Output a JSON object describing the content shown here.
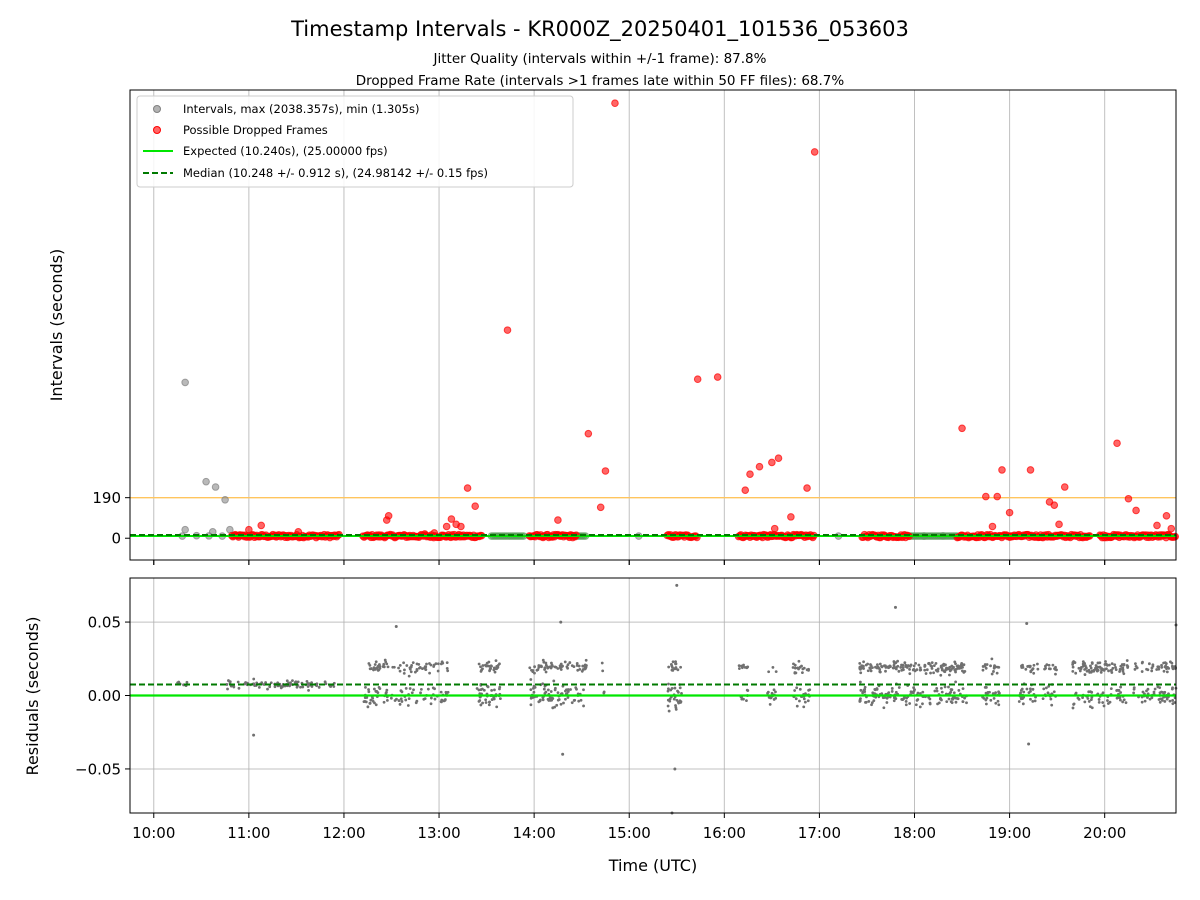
{
  "chart_data": [
    {
      "type": "scatter",
      "title": "Timestamp Intervals - KR000Z_20250401_101536_053603",
      "subtitle_lines": [
        "Jitter Quality (intervals within +/-1 frame): 87.8%",
        "Dropped Frame Rate (intervals >1 frames late within 50 FF files): 68.7%"
      ],
      "xlabel": "",
      "ylabel": "Intervals (seconds)",
      "x_unit": "hours UTC",
      "xlim": [
        9.75,
        20.75
      ],
      "ylim": [
        -102,
        2100
      ],
      "x_tick_values": [
        10,
        11,
        12,
        13,
        14,
        15,
        16,
        17,
        18,
        19,
        20
      ],
      "x_tick_labels": [
        "10:00",
        "11:00",
        "12:00",
        "13:00",
        "14:00",
        "15:00",
        "16:00",
        "17:00",
        "18:00",
        "19:00",
        "20:00"
      ],
      "y_tick_values": [
        0,
        190
      ],
      "y_tick_labels": [
        "0",
        "190"
      ],
      "grid": "vertical",
      "threshold_line": {
        "value": 190,
        "color": "#ffc55e"
      },
      "expected_value": 10.24,
      "median_value": 10.248,
      "legend": {
        "placement": "top-left",
        "entries": [
          {
            "label": "Intervals, max (2038.357s), min (1.305s)",
            "kind": "marker",
            "color": "#808080"
          },
          {
            "label": "Possible Dropped Frames",
            "kind": "marker",
            "color": "#ff0000"
          },
          {
            "label": "Expected (10.240s), (25.00000 fps)",
            "kind": "line",
            "color": "#00e600"
          },
          {
            "label": "Median (10.248 +/- 0.912 s), (24.98142 +/- 0.15 fps)",
            "kind": "dashed",
            "color": "#007a00"
          }
        ]
      },
      "series": [
        {
          "name": "Intervals",
          "color": "#808080",
          "points": [
            {
              "x": 10.33,
              "y": 730
            },
            {
              "x": 10.55,
              "y": 265
            },
            {
              "x": 10.65,
              "y": 240
            },
            {
              "x": 10.75,
              "y": 180
            },
            {
              "x": 10.33,
              "y": 40
            },
            {
              "x": 10.62,
              "y": 30
            },
            {
              "x": 10.8,
              "y": 40
            },
            {
              "x": 10.3,
              "y": 10
            },
            {
              "x": 10.45,
              "y": 12
            },
            {
              "x": 10.58,
              "y": 11
            },
            {
              "x": 10.72,
              "y": 10
            },
            {
              "x": 10.9,
              "y": 11
            },
            {
              "x": 14.1,
              "y": 11
            },
            {
              "x": 14.4,
              "y": 12
            },
            {
              "x": 15.1,
              "y": 10
            },
            {
              "x": 16.5,
              "y": 11
            },
            {
              "x": 17.2,
              "y": 10
            },
            {
              "x": 17.9,
              "y": 12
            },
            {
              "x": 18.1,
              "y": 10
            },
            {
              "x": 18.3,
              "y": 11
            },
            {
              "x": 19.5,
              "y": 10
            },
            {
              "x": 20.4,
              "y": 11
            }
          ]
        },
        {
          "name": "Possible Dropped Frames",
          "color": "#ff0000",
          "outliers": [
            {
              "x": 14.85,
              "y": 2038
            },
            {
              "x": 16.95,
              "y": 1810
            },
            {
              "x": 13.72,
              "y": 975
            },
            {
              "x": 15.72,
              "y": 745
            },
            {
              "x": 15.93,
              "y": 755
            },
            {
              "x": 14.57,
              "y": 490
            },
            {
              "x": 18.5,
              "y": 515
            },
            {
              "x": 20.13,
              "y": 445
            },
            {
              "x": 14.75,
              "y": 315
            },
            {
              "x": 16.5,
              "y": 355
            },
            {
              "x": 16.37,
              "y": 335
            },
            {
              "x": 16.57,
              "y": 375
            },
            {
              "x": 16.27,
              "y": 300
            },
            {
              "x": 16.22,
              "y": 225
            },
            {
              "x": 16.87,
              "y": 235
            },
            {
              "x": 18.92,
              "y": 320
            },
            {
              "x": 19.22,
              "y": 320
            },
            {
              "x": 13.3,
              "y": 235
            },
            {
              "x": 13.38,
              "y": 150
            },
            {
              "x": 14.7,
              "y": 145
            },
            {
              "x": 12.47,
              "y": 105
            },
            {
              "x": 12.45,
              "y": 85
            },
            {
              "x": 12.85,
              "y": 20
            },
            {
              "x": 18.75,
              "y": 195
            },
            {
              "x": 18.87,
              "y": 195
            },
            {
              "x": 19.42,
              "y": 170
            },
            {
              "x": 19.47,
              "y": 155
            },
            {
              "x": 19.58,
              "y": 240
            },
            {
              "x": 19.0,
              "y": 120
            },
            {
              "x": 20.25,
              "y": 185
            },
            {
              "x": 20.33,
              "y": 130
            },
            {
              "x": 20.65,
              "y": 105
            },
            {
              "x": 20.55,
              "y": 60
            },
            {
              "x": 20.7,
              "y": 45
            },
            {
              "x": 16.7,
              "y": 100
            },
            {
              "x": 14.25,
              "y": 85
            },
            {
              "x": 11.13,
              "y": 60
            },
            {
              "x": 13.13,
              "y": 90
            },
            {
              "x": 13.18,
              "y": 65
            },
            {
              "x": 13.08,
              "y": 55
            },
            {
              "x": 18.82,
              "y": 55
            },
            {
              "x": 19.52,
              "y": 65
            },
            {
              "x": 16.53,
              "y": 45
            },
            {
              "x": 13.23,
              "y": 55
            },
            {
              "x": 11.0,
              "y": 40
            },
            {
              "x": 11.52,
              "y": 30
            },
            {
              "x": 12.95,
              "y": 25
            }
          ],
          "baseline_clusters": [
            {
              "start": 10.82,
              "end": 11.95,
              "y": 10
            },
            {
              "start": 12.2,
              "end": 13.45,
              "y": 10
            },
            {
              "start": 13.95,
              "end": 14.45,
              "y": 10
            },
            {
              "start": 15.4,
              "end": 15.72,
              "y": 10
            },
            {
              "start": 16.15,
              "end": 16.95,
              "y": 10
            },
            {
              "start": 17.45,
              "end": 17.95,
              "y": 10
            },
            {
              "start": 18.45,
              "end": 19.35,
              "y": 10
            },
            {
              "start": 19.35,
              "end": 19.85,
              "y": 10
            },
            {
              "start": 19.95,
              "end": 20.75,
              "y": 10
            }
          ]
        }
      ]
    },
    {
      "type": "scatter",
      "title": "",
      "xlabel": "Time (UTC)",
      "ylabel": "Residuals (seconds)",
      "xlim": [
        9.75,
        20.75
      ],
      "ylim": [
        -0.08,
        0.08
      ],
      "x_tick_values": [
        10,
        11,
        12,
        13,
        14,
        15,
        16,
        17,
        18,
        19,
        20
      ],
      "x_tick_labels": [
        "10:00",
        "11:00",
        "12:00",
        "13:00",
        "14:00",
        "15:00",
        "16:00",
        "17:00",
        "18:00",
        "19:00",
        "20:00"
      ],
      "y_tick_values": [
        0.05,
        0.0,
        -0.05
      ],
      "y_tick_labels": [
        "0.05",
        "0.00",
        "−0.05"
      ],
      "grid": "both",
      "expected_value": 0.0,
      "median_value": 0.0075,
      "clusters": [
        {
          "start": 10.25,
          "end": 10.35,
          "spread": 0.004,
          "n": 8
        },
        {
          "start": 10.75,
          "end": 11.95,
          "spread": 0.005,
          "n": 90
        },
        {
          "start": 12.2,
          "end": 13.1,
          "spread": 0.014,
          "n": 150
        },
        {
          "start": 13.4,
          "end": 13.65,
          "spread": 0.014,
          "n": 70
        },
        {
          "start": 13.95,
          "end": 14.55,
          "spread": 0.016,
          "n": 140
        },
        {
          "start": 14.7,
          "end": 14.75,
          "spread": 0.01,
          "n": 4
        },
        {
          "start": 15.4,
          "end": 15.55,
          "spread": 0.018,
          "n": 45
        },
        {
          "start": 16.15,
          "end": 16.25,
          "spread": 0.012,
          "n": 18
        },
        {
          "start": 16.45,
          "end": 16.55,
          "spread": 0.012,
          "n": 18
        },
        {
          "start": 16.72,
          "end": 16.9,
          "spread": 0.012,
          "n": 40
        },
        {
          "start": 17.42,
          "end": 18.55,
          "spread": 0.014,
          "n": 300
        },
        {
          "start": 18.7,
          "end": 18.9,
          "spread": 0.012,
          "n": 40
        },
        {
          "start": 19.1,
          "end": 19.3,
          "spread": 0.014,
          "n": 45
        },
        {
          "start": 19.35,
          "end": 19.5,
          "spread": 0.014,
          "n": 30
        },
        {
          "start": 19.65,
          "end": 20.25,
          "spread": 0.014,
          "n": 140
        },
        {
          "start": 20.3,
          "end": 20.75,
          "spread": 0.014,
          "n": 90
        }
      ],
      "extreme_points": [
        {
          "x": 15.5,
          "y": 0.075
        },
        {
          "x": 15.48,
          "y": -0.05
        },
        {
          "x": 15.45,
          "y": -0.08
        },
        {
          "x": 17.8,
          "y": 0.06
        },
        {
          "x": 19.18,
          "y": 0.049
        },
        {
          "x": 14.28,
          "y": 0.05
        },
        {
          "x": 14.3,
          "y": -0.04
        },
        {
          "x": 12.55,
          "y": 0.047
        },
        {
          "x": 11.05,
          "y": -0.027
        },
        {
          "x": 19.2,
          "y": -0.033
        },
        {
          "x": 20.75,
          "y": 0.048
        }
      ]
    }
  ]
}
